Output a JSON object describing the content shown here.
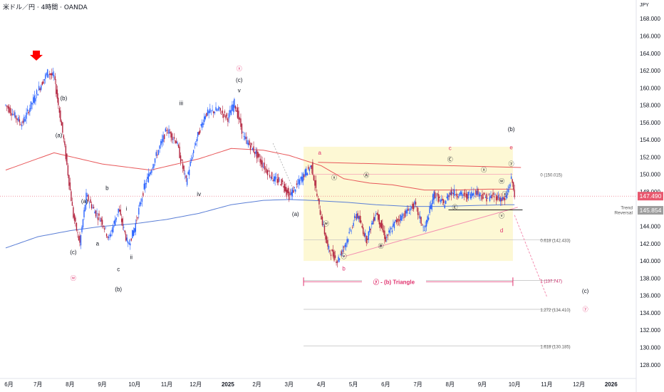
{
  "header": {
    "title": "米ドル／円 · 4時間 · OANDA",
    "currency": "JPY"
  },
  "colors": {
    "bull": "#2962ff",
    "bear": "#b2233e",
    "ma_long": "#5b7fd6",
    "ma_mid": "#e8585a",
    "triangle_box": "#fdf8d4",
    "wave_red": "#e0326e",
    "wave_dark": "#131722",
    "fib": "#c2185b",
    "arrow": "#ff0000",
    "price_tag": "#e8586e",
    "gray_tag": "#9e9e9e"
  },
  "chart_data": {
    "type": "line",
    "title": "米ドル／円 · 4時間 · OANDA",
    "xlabel": "",
    "ylabel": "JPY",
    "ylim": [
      126.5,
      169.5
    ],
    "y_ticks": [
      "168.000",
      "166.000",
      "164.000",
      "162.000",
      "160.000",
      "158.000",
      "156.000",
      "154.000",
      "152.000",
      "150.000",
      "148.000",
      "146.000",
      "144.000",
      "142.000",
      "140.000",
      "138.000",
      "136.000",
      "134.000",
      "132.000",
      "130.000",
      "128.000"
    ],
    "x_ticks": [
      "6月",
      "7月",
      "8月",
      "9月",
      "10月",
      "11月",
      "12月",
      "2025",
      "2月",
      "3月",
      "4月",
      "5月",
      "6月",
      "7月",
      "8月",
      "9月",
      "10月",
      "11月",
      "12月",
      "2026"
    ],
    "x_tick_t": [
      0.1,
      1.0,
      2.0,
      3.0,
      4.0,
      5.0,
      5.9,
      6.9,
      7.8,
      8.8,
      9.8,
      10.8,
      11.8,
      12.8,
      13.8,
      14.8,
      15.8,
      16.8,
      17.8,
      18.8
    ],
    "price_series": {
      "name": "USDJPY",
      "t": [
        0,
        0.5,
        1.0,
        1.3,
        1.5,
        1.8,
        2.1,
        2.3,
        2.5,
        2.8,
        3.0,
        3.2,
        3.5,
        3.8,
        4.0,
        4.3,
        4.6,
        5.0,
        5.3,
        5.6,
        5.9,
        6.2,
        6.6,
        6.9,
        7.1,
        7.4,
        7.7,
        8.0,
        8.3,
        8.6,
        8.8,
        9.0,
        9.3,
        9.5,
        9.7,
        10.0,
        10.3,
        10.6,
        10.9,
        11.2,
        11.5,
        11.8,
        12.1,
        12.4,
        12.7,
        13.0,
        13.3,
        13.6,
        13.8,
        14.0,
        14.3,
        14.6,
        14.9,
        15.2,
        15.5,
        15.7,
        15.8
      ],
      "values": [
        158,
        155.8,
        159.7,
        161.8,
        161.3,
        154,
        145.2,
        142,
        147.5,
        145.5,
        144.5,
        142.5,
        146,
        141.8,
        143.8,
        148.5,
        151.5,
        155.2,
        153.8,
        149.2,
        153.8,
        157,
        157.5,
        156.5,
        158.3,
        154.2,
        152.8,
        151,
        149.5,
        149,
        147.5,
        148.5,
        150.2,
        151,
        146.8,
        141.5,
        140,
        142.5,
        145.5,
        142.5,
        145.7,
        142.5,
        144.5,
        145.5,
        146.5,
        143.5,
        147.8,
        146.5,
        148,
        147.8,
        147.5,
        148,
        147.3,
        147.5,
        147,
        149.5,
        147.8
      ]
    },
    "ma_mid": {
      "name": "",
      "t": [
        0,
        1.5,
        3.0,
        4.5,
        6.0,
        7.0,
        8.0,
        8.8,
        9.8,
        10.5,
        11.3,
        12.0,
        13.0,
        14.0,
        15.0,
        15.8
      ],
      "values": [
        150.5,
        152.5,
        151.2,
        150.5,
        151.8,
        153,
        152.8,
        152.2,
        151,
        149.5,
        149,
        148.8,
        148.2,
        148.2,
        148.3,
        148.3
      ]
    },
    "ma_long": {
      "name": "",
      "t": [
        0,
        1,
        2,
        3,
        4,
        5,
        6,
        7,
        8,
        8.8,
        9.5,
        10.5,
        11.5,
        12.5,
        13.5,
        14.5,
        15.5,
        15.8
      ],
      "values": [
        141.5,
        142.8,
        143.5,
        144,
        144.3,
        144.8,
        145.5,
        146.5,
        147,
        147.1,
        147,
        146.8,
        146.5,
        146.3,
        146.3,
        146.4,
        146.5,
        146.5
      ]
    },
    "projection": {
      "t": [
        15.8,
        16.8
      ],
      "values": [
        145.3,
        135.9
      ]
    },
    "fib_levels": [
      {
        "label": "0 (150.015)",
        "value": 150.015
      },
      {
        "label": "0.618 (142.433)",
        "value": 142.433
      },
      {
        "label": "1 (137.747)",
        "value": 137.747
      },
      {
        "label": "1.272 (134.410)",
        "value": 134.41
      },
      {
        "label": "1.618 (130.185)",
        "value": 130.185
      }
    ],
    "price_tags": [
      {
        "label": "147.490",
        "value": 147.49,
        "kind": "current"
      },
      {
        "label": "145.854",
        "value": 145.854,
        "kind": "trend"
      }
    ],
    "trend_label": [
      "Trend",
      "Reversal"
    ],
    "triangle_label": "ⓨ - (b) Triangle",
    "wave_labels": [
      {
        "text": "(b)",
        "t": 1.8,
        "v": 158.6,
        "c": "dark"
      },
      {
        "text": "(a)",
        "t": 1.65,
        "v": 154.3,
        "c": "dark"
      },
      {
        "text": "(a)",
        "t": 2.45,
        "v": 146.7,
        "c": "dark"
      },
      {
        "text": "(c)",
        "t": 2.1,
        "v": 140.8,
        "c": "dark"
      },
      {
        "text": "ⓦ",
        "t": 2.1,
        "v": 137.8,
        "c": "red"
      },
      {
        "text": "a",
        "t": 2.85,
        "v": 141.8,
        "c": "dark"
      },
      {
        "text": "b",
        "t": 3.15,
        "v": 148.2,
        "c": "dark"
      },
      {
        "text": "c",
        "t": 3.5,
        "v": 138.8,
        "c": "dark"
      },
      {
        "text": "(b)",
        "t": 3.5,
        "v": 136.5,
        "c": "dark"
      },
      {
        "text": "i",
        "t": 3.75,
        "v": 145.8,
        "c": "dark"
      },
      {
        "text": "ii",
        "t": 3.9,
        "v": 140.2,
        "c": "dark"
      },
      {
        "text": "iii",
        "t": 5.45,
        "v": 158,
        "c": "dark"
      },
      {
        "text": "iv",
        "t": 6.0,
        "v": 147.5,
        "c": "dark"
      },
      {
        "text": "ⓧ",
        "t": 7.25,
        "v": 162,
        "c": "red"
      },
      {
        "text": "(c)",
        "t": 7.25,
        "v": 160.7,
        "c": "dark"
      },
      {
        "text": "v",
        "t": 7.25,
        "v": 159.5,
        "c": "dark"
      },
      {
        "text": "(a)",
        "t": 9.0,
        "v": 145.2,
        "c": "dark"
      },
      {
        "text": "a",
        "t": 9.75,
        "v": 152.3,
        "c": "red"
      },
      {
        "text": "ⓧ",
        "t": 10.2,
        "v": 149.4,
        "c": "dark"
      },
      {
        "text": "ⓦ",
        "t": 9.95,
        "v": 144.1,
        "c": "dark"
      },
      {
        "text": "ⓥ",
        "t": 10.5,
        "v": 140.3,
        "c": "dark"
      },
      {
        "text": "b",
        "t": 10.5,
        "v": 138.9,
        "c": "red"
      },
      {
        "text": "Ⓐ",
        "t": 11.2,
        "v": 149.7,
        "c": "dark"
      },
      {
        "text": "Ⓑ",
        "t": 11.65,
        "v": 141.5,
        "c": "dark"
      },
      {
        "text": "Ⓒ",
        "t": 13.8,
        "v": 151.5,
        "c": "dark"
      },
      {
        "text": "c",
        "t": 13.8,
        "v": 152.8,
        "c": "red"
      },
      {
        "text": "Ⓔ",
        "t": 13.95,
        "v": 146,
        "c": "dark"
      },
      {
        "text": "ⓧ",
        "t": 14.85,
        "v": 150.3,
        "c": "dark"
      },
      {
        "text": "ⓦ",
        "t": 15.4,
        "v": 149,
        "c": "dark"
      },
      {
        "text": "ⓧ",
        "t": 15.5,
        "v": 147.5,
        "c": "dark"
      },
      {
        "text": "ⓥ",
        "t": 15.4,
        "v": 145,
        "c": "dark"
      },
      {
        "text": "d",
        "t": 15.4,
        "v": 143.3,
        "c": "red"
      },
      {
        "text": "ⓨ",
        "t": 15.7,
        "v": 151,
        "c": "dark"
      },
      {
        "text": "e",
        "t": 15.7,
        "v": 152.9,
        "c": "red"
      },
      {
        "text": "(b)",
        "t": 15.7,
        "v": 155,
        "c": "dark"
      },
      {
        "text": "(c)",
        "t": 18.0,
        "v": 136.3,
        "c": "dark"
      },
      {
        "text": "ⓨ",
        "t": 18.0,
        "v": 134.2,
        "c": "red"
      }
    ]
  }
}
